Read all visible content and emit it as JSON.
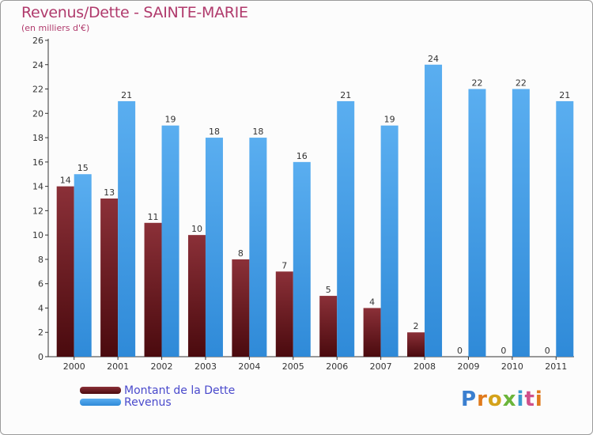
{
  "title": "Revenus/Dette - SAINTE-MARIE",
  "subtitle": "(en milliers d'€)",
  "logo_text": "Proxiti",
  "colors": {
    "title": "#b03a6c",
    "dette_top": "#8b3038",
    "dette_bottom": "#4a0a0e",
    "revenus_top": "#5aaef0",
    "revenus_bottom": "#2f8ad8",
    "legend_text": "#4a4acc"
  },
  "legend": [
    {
      "label": "Montant de la Dette",
      "color_key": "dette"
    },
    {
      "label": "Revenus",
      "color_key": "revenus"
    }
  ],
  "chart_data": {
    "type": "bar",
    "title": "Revenus/Dette - SAINTE-MARIE",
    "ylabel": "(en milliers d'€)",
    "xlabel": "",
    "categories": [
      "2000",
      "2001",
      "2002",
      "2003",
      "2004",
      "2005",
      "2006",
      "2007",
      "2008",
      "2009",
      "2010",
      "2011"
    ],
    "series": [
      {
        "name": "Montant de la Dette",
        "values": [
          14,
          13,
          11,
          10,
          8,
          7,
          5,
          4,
          2,
          0,
          0,
          0
        ]
      },
      {
        "name": "Revenus",
        "values": [
          15,
          21,
          19,
          18,
          18,
          16,
          21,
          19,
          24,
          22,
          22,
          21
        ]
      }
    ],
    "ylim": [
      0,
      26
    ],
    "yticks": [
      0,
      2,
      4,
      6,
      8,
      10,
      12,
      14,
      16,
      18,
      20,
      22,
      24,
      26
    ],
    "grid": false,
    "legend_position": "bottom-left"
  }
}
